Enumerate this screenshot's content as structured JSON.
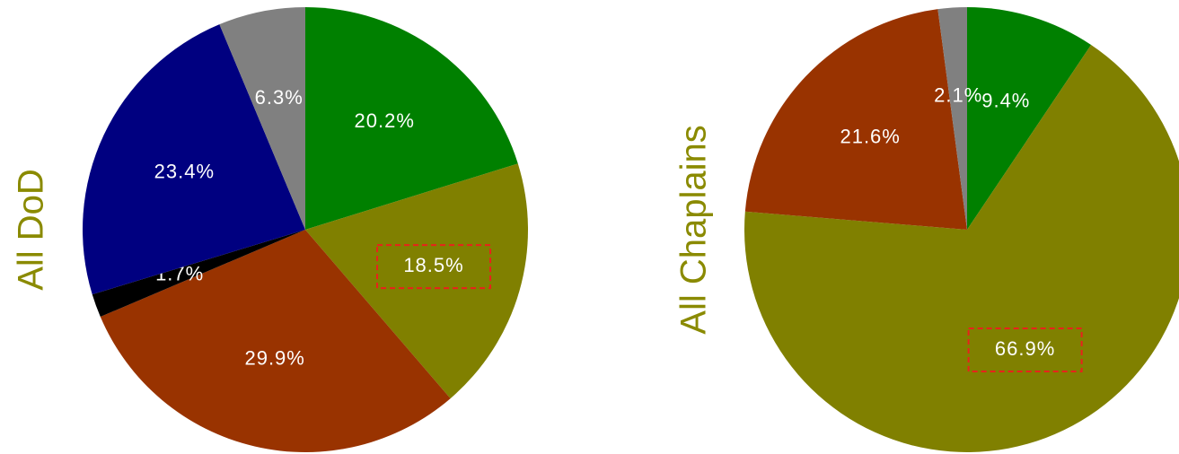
{
  "chart_data": [
    {
      "type": "pie",
      "title": "All DoD",
      "title_color": "#8a8a00",
      "categories": [
        null,
        null,
        null,
        null,
        null,
        null
      ],
      "values": [
        20.2,
        18.5,
        29.9,
        1.7,
        23.4,
        6.3
      ],
      "value_labels": [
        "20.2%",
        "18.5%",
        "29.9%",
        "1.7%",
        "23.4%",
        "6.3%"
      ],
      "colors": [
        "#008000",
        "#808000",
        "#993300",
        "#000000",
        "#000080",
        "#808080"
      ],
      "highlighted": 1
    },
    {
      "type": "pie",
      "title": "All Chaplains",
      "title_color": "#8a8a00",
      "categories": [
        null,
        null,
        null,
        null
      ],
      "values": [
        9.4,
        66.9,
        21.6,
        2.1
      ],
      "value_labels": [
        "9.4%",
        "66.9%",
        "21.6%",
        "2.1%"
      ],
      "colors": [
        "#008000",
        "#808000",
        "#993300",
        "#808080"
      ],
      "highlighted": 1
    }
  ]
}
